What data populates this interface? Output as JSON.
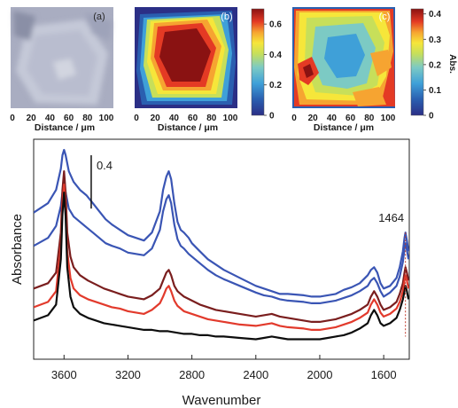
{
  "chart_data": [
    {
      "type": "image",
      "panel_label": "(a)",
      "xlabel": "Distance / μm",
      "x_ticks": [
        "0",
        "20",
        "40",
        "60",
        "80",
        "100"
      ],
      "colors": {
        "background": "#a7acc0",
        "image_tint": "#c9ccd9"
      }
    },
    {
      "type": "heatmap",
      "panel_label": "(b)",
      "xlabel": "Distance / μm",
      "x_ticks": [
        "0",
        "20",
        "40",
        "60",
        "80",
        "100"
      ],
      "colorbar": {
        "ticks": [
          "0",
          "0.2",
          "0.4",
          "0.6"
        ],
        "range": [
          0,
          0.7
        ]
      },
      "description_levels": [
        0.0,
        0.1,
        0.2,
        0.3,
        0.4,
        0.5,
        0.6,
        0.65
      ]
    },
    {
      "type": "heatmap",
      "panel_label": "(c)",
      "xlabel": "Distance / μm",
      "x_ticks": [
        "0",
        "20",
        "40",
        "60",
        "80",
        "100"
      ],
      "colorbar": {
        "ticks": [
          "0",
          "0.1",
          "0.2",
          "0.3",
          "0.4"
        ],
        "range": [
          0,
          0.42
        ],
        "label": "Abs."
      }
    },
    {
      "type": "line",
      "xlabel": "Wavenumber",
      "ylabel": "Absorbance",
      "x_ticks": [
        "3600",
        "3200",
        "2800",
        "2400",
        "2000",
        "1600"
      ],
      "xlim": [
        3790,
        1440
      ],
      "x_reversed": true,
      "scale_bar_label": "0.4",
      "annotation": "1464",
      "series": [
        {
          "color": "#3a55b4",
          "x": [
            3790,
            3700,
            3650,
            3620,
            3610,
            3600,
            3590,
            3570,
            3540,
            3500,
            3460,
            3420,
            3380,
            3340,
            3300,
            3250,
            3200,
            3150,
            3100,
            3050,
            3000,
            2980,
            2960,
            2945,
            2930,
            2910,
            2890,
            2870,
            2850,
            2820,
            2800,
            2750,
            2700,
            2650,
            2600,
            2500,
            2400,
            2350,
            2300,
            2250,
            2200,
            2100,
            2050,
            2000,
            1950,
            1900,
            1850,
            1800,
            1750,
            1700,
            1680,
            1660,
            1640,
            1620,
            1600,
            1560,
            1520,
            1500,
            1480,
            1470,
            1464,
            1455,
            1445
          ],
          "y": [
            2.55,
            2.62,
            2.72,
            2.88,
            2.98,
            3.02,
            2.98,
            2.86,
            2.78,
            2.72,
            2.68,
            2.62,
            2.56,
            2.5,
            2.46,
            2.42,
            2.38,
            2.36,
            2.34,
            2.4,
            2.56,
            2.72,
            2.82,
            2.86,
            2.8,
            2.62,
            2.48,
            2.42,
            2.4,
            2.36,
            2.32,
            2.26,
            2.2,
            2.16,
            2.12,
            2.06,
            2.0,
            1.98,
            1.96,
            1.94,
            1.94,
            1.93,
            1.92,
            1.92,
            1.93,
            1.94,
            1.97,
            1.99,
            2.02,
            2.08,
            2.12,
            2.14,
            2.1,
            2.02,
            1.98,
            2.0,
            2.06,
            2.14,
            2.26,
            2.36,
            2.4,
            2.34,
            2.26
          ]
        },
        {
          "color": "#3a55b4",
          "x": [
            3790,
            3700,
            3650,
            3620,
            3610,
            3600,
            3590,
            3570,
            3540,
            3500,
            3460,
            3420,
            3380,
            3340,
            3300,
            3250,
            3200,
            3150,
            3100,
            3050,
            3000,
            2980,
            2960,
            2945,
            2930,
            2910,
            2890,
            2870,
            2850,
            2820,
            2800,
            2750,
            2700,
            2650,
            2600,
            2500,
            2400,
            2350,
            2300,
            2250,
            2200,
            2100,
            2050,
            2000,
            1950,
            1900,
            1850,
            1800,
            1750,
            1700,
            1680,
            1660,
            1640,
            1620,
            1600,
            1560,
            1520,
            1500,
            1480,
            1470,
            1464,
            1455,
            1445
          ],
          "y": [
            2.3,
            2.36,
            2.45,
            2.6,
            2.7,
            2.74,
            2.7,
            2.58,
            2.52,
            2.48,
            2.44,
            2.4,
            2.36,
            2.32,
            2.3,
            2.28,
            2.25,
            2.24,
            2.23,
            2.28,
            2.42,
            2.56,
            2.65,
            2.68,
            2.62,
            2.46,
            2.35,
            2.3,
            2.28,
            2.24,
            2.22,
            2.17,
            2.12,
            2.08,
            2.05,
            2.0,
            1.95,
            1.93,
            1.92,
            1.9,
            1.89,
            1.88,
            1.87,
            1.87,
            1.88,
            1.89,
            1.91,
            1.93,
            1.96,
            2.0,
            2.04,
            2.06,
            2.02,
            1.96,
            1.92,
            1.95,
            2.0,
            2.07,
            2.18,
            2.28,
            2.32,
            2.27,
            2.2
          ]
        },
        {
          "color": "#7a1e1e",
          "x": [
            3790,
            3700,
            3650,
            3620,
            3610,
            3600,
            3590,
            3580,
            3560,
            3540,
            3500,
            3450,
            3400,
            3350,
            3300,
            3250,
            3200,
            3150,
            3100,
            3050,
            3000,
            2980,
            2960,
            2945,
            2930,
            2910,
            2890,
            2870,
            2850,
            2800,
            2750,
            2700,
            2650,
            2600,
            2500,
            2400,
            2350,
            2300,
            2250,
            2200,
            2100,
            2050,
            2000,
            1950,
            1900,
            1850,
            1800,
            1750,
            1700,
            1680,
            1660,
            1640,
            1620,
            1600,
            1560,
            1520,
            1500,
            1480,
            1470,
            1464,
            1455,
            1445
          ],
          "y": [
            1.98,
            2.02,
            2.1,
            2.4,
            2.72,
            2.86,
            2.7,
            2.4,
            2.22,
            2.14,
            2.08,
            2.04,
            2.01,
            1.98,
            1.96,
            1.94,
            1.92,
            1.91,
            1.9,
            1.93,
            1.98,
            2.04,
            2.1,
            2.12,
            2.08,
            2.0,
            1.96,
            1.94,
            1.92,
            1.89,
            1.86,
            1.84,
            1.82,
            1.81,
            1.79,
            1.77,
            1.78,
            1.79,
            1.77,
            1.76,
            1.74,
            1.73,
            1.73,
            1.74,
            1.75,
            1.77,
            1.79,
            1.82,
            1.86,
            1.92,
            1.96,
            1.92,
            1.86,
            1.82,
            1.84,
            1.88,
            1.94,
            2.02,
            2.1,
            2.14,
            2.1,
            2.04
          ]
        },
        {
          "color": "#e23a2c",
          "x": [
            3790,
            3700,
            3650,
            3620,
            3610,
            3600,
            3590,
            3580,
            3560,
            3540,
            3500,
            3450,
            3400,
            3350,
            3300,
            3250,
            3200,
            3150,
            3100,
            3050,
            3000,
            2980,
            2960,
            2945,
            2930,
            2910,
            2890,
            2870,
            2850,
            2800,
            2750,
            2700,
            2650,
            2600,
            2500,
            2400,
            2350,
            2300,
            2250,
            2200,
            2100,
            2050,
            2000,
            1950,
            1900,
            1850,
            1800,
            1750,
            1700,
            1680,
            1660,
            1640,
            1620,
            1600,
            1560,
            1520,
            1500,
            1480,
            1470,
            1464,
            1455,
            1445
          ],
          "y": [
            1.84,
            1.88,
            1.96,
            2.3,
            2.62,
            2.76,
            2.58,
            2.26,
            2.06,
            1.98,
            1.93,
            1.9,
            1.88,
            1.86,
            1.84,
            1.83,
            1.81,
            1.8,
            1.79,
            1.82,
            1.87,
            1.92,
            1.98,
            2.0,
            1.96,
            1.89,
            1.85,
            1.83,
            1.81,
            1.79,
            1.77,
            1.75,
            1.74,
            1.73,
            1.71,
            1.7,
            1.71,
            1.72,
            1.7,
            1.69,
            1.68,
            1.67,
            1.67,
            1.68,
            1.69,
            1.71,
            1.73,
            1.76,
            1.8,
            1.86,
            1.9,
            1.86,
            1.8,
            1.77,
            1.79,
            1.83,
            1.88,
            1.96,
            2.04,
            2.08,
            2.04,
            1.98
          ]
        },
        {
          "color": "#0d0d0d",
          "x": [
            3790,
            3700,
            3650,
            3620,
            3610,
            3600,
            3590,
            3580,
            3560,
            3540,
            3500,
            3450,
            3400,
            3350,
            3300,
            3250,
            3200,
            3150,
            3100,
            3050,
            3000,
            2950,
            2900,
            2850,
            2800,
            2750,
            2700,
            2650,
            2600,
            2500,
            2400,
            2350,
            2300,
            2250,
            2200,
            2100,
            2050,
            2000,
            1950,
            1900,
            1850,
            1800,
            1750,
            1700,
            1680,
            1660,
            1640,
            1620,
            1600,
            1560,
            1520,
            1500,
            1480,
            1470,
            1464,
            1455,
            1445
          ],
          "y": [
            1.74,
            1.78,
            1.86,
            2.2,
            2.54,
            2.7,
            2.52,
            2.14,
            1.92,
            1.84,
            1.79,
            1.76,
            1.74,
            1.72,
            1.71,
            1.7,
            1.69,
            1.68,
            1.67,
            1.67,
            1.66,
            1.66,
            1.65,
            1.64,
            1.64,
            1.63,
            1.63,
            1.62,
            1.62,
            1.61,
            1.6,
            1.61,
            1.62,
            1.61,
            1.6,
            1.6,
            1.6,
            1.6,
            1.61,
            1.62,
            1.63,
            1.65,
            1.68,
            1.72,
            1.78,
            1.82,
            1.78,
            1.72,
            1.7,
            1.72,
            1.76,
            1.82,
            1.9,
            1.96,
            2.0,
            1.96,
            1.9
          ]
        }
      ]
    }
  ]
}
